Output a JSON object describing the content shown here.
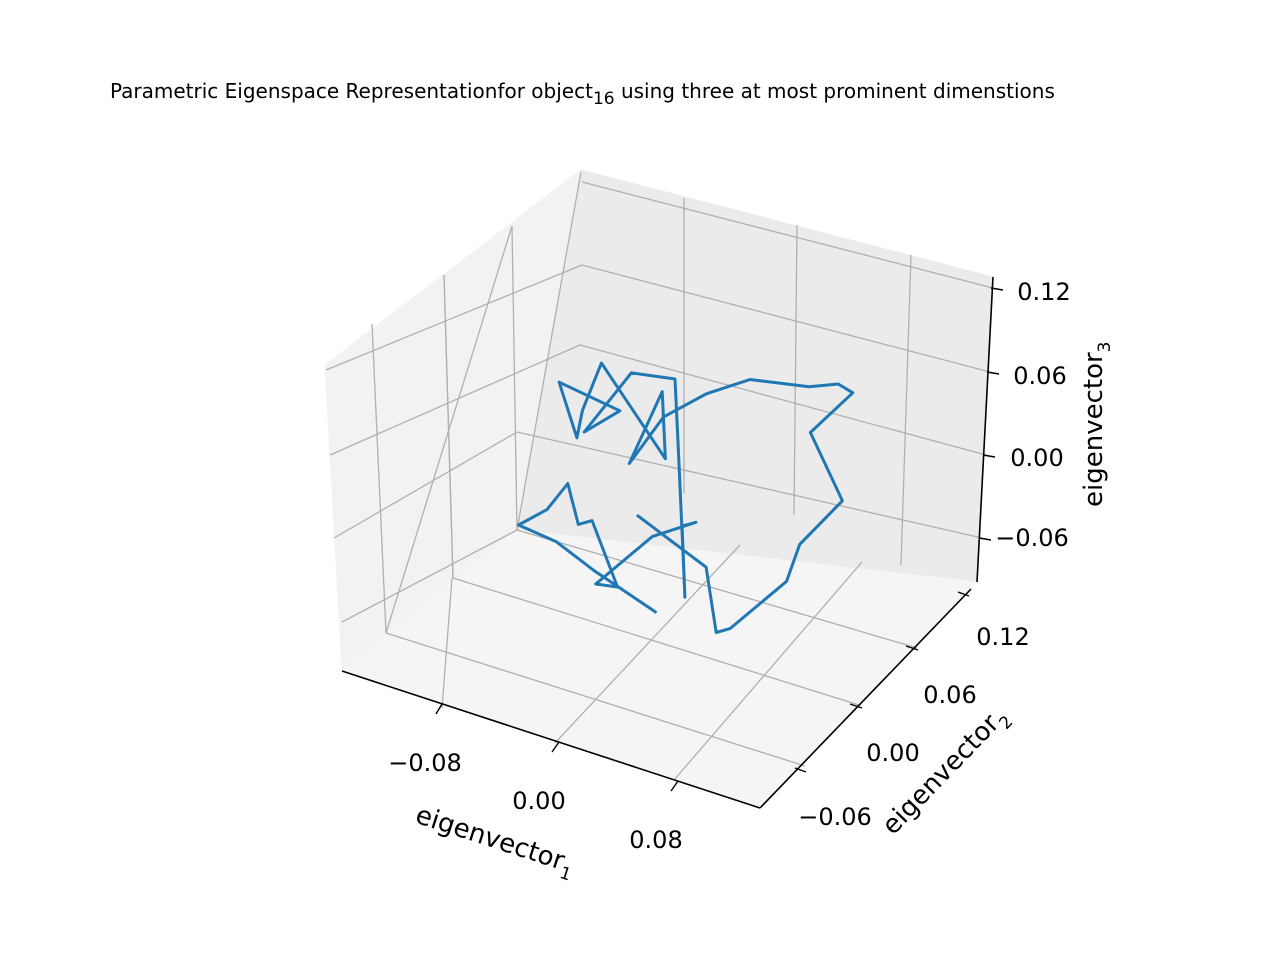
{
  "chart_data": {
    "type": "line",
    "projection": "3d",
    "title": {
      "main": "Parametric Eigenspace Representationfor object",
      "subscript": "16",
      "rest": " using three at most prominent dimenstions"
    },
    "xlabel": {
      "main": "eigenvector",
      "subscript": "1"
    },
    "ylabel": {
      "main": "eigenvector",
      "subscript": "2"
    },
    "zlabel": {
      "main": "eigenvector",
      "subscript": "3"
    },
    "x_ticks": [
      "−0.08",
      "0.00",
      "0.08"
    ],
    "y_ticks": [
      "−0.06",
      "0.00",
      "0.06",
      "0.12"
    ],
    "z_ticks": [
      "−0.06",
      "0.00",
      "0.06",
      "0.12"
    ],
    "xlim": [
      -0.15,
      0.13
    ],
    "ylim": [
      -0.09,
      0.15
    ],
    "zlim": [
      -0.09,
      0.15
    ],
    "grid": true,
    "line_color": "#1f77b4",
    "series": [
      {
        "x": [
          0.02,
          -0.01,
          -0.03,
          -0.05,
          -0.03,
          -0.02,
          -0.03,
          -0.01,
          0.01,
          -0.01,
          0.02,
          0.04,
          0.02,
          0.04,
          0.03,
          0.01,
          0.0,
          -0.04,
          -0.09,
          -0.07,
          -0.1,
          -0.09,
          -0.08,
          -0.06,
          -0.02,
          -0.03,
          -0.05,
          -0.03,
          0.0,
          0.02,
          0.06,
          0.08,
          0.1,
          0.08,
          0.12,
          0.11,
          0.11,
          0.08,
          0.06,
          0.04,
          0.0
        ],
        "y": [
          0.0,
          -0.02,
          -0.03,
          -0.04,
          -0.04,
          -0.03,
          0.0,
          -0.02,
          -0.03,
          -0.02,
          0.0,
          0.02,
          0.04,
          0.0,
          0.02,
          0.06,
          0.08,
          0.1,
          0.13,
          0.14,
          0.12,
          0.12,
          0.11,
          0.1,
          0.1,
          0.12,
          0.11,
          0.12,
          0.12,
          0.14,
          0.14,
          0.14,
          0.12,
          0.1,
          0.06,
          0.02,
          0.0,
          -0.02,
          0.0,
          0.03,
          0.02
        ],
        "z": [
          -0.02,
          0.01,
          0.03,
          0.04,
          0.06,
          0.08,
          0.03,
          0.05,
          0.01,
          0.0,
          0.04,
          0.05,
          0.03,
          0.0,
          0.02,
          0.08,
          0.12,
          0.1,
          0.02,
          0.04,
          0.06,
          0.02,
          0.05,
          0.1,
          0.04,
          0.08,
          0.02,
          0.06,
          0.09,
          0.1,
          0.11,
          0.12,
          0.13,
          0.1,
          0.08,
          0.06,
          0.04,
          0.0,
          -0.02,
          0.01,
          0.04
        ]
      }
    ]
  }
}
